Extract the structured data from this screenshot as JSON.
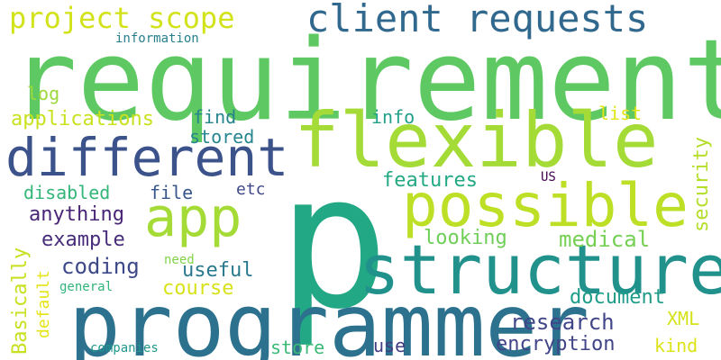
{
  "words": [
    {
      "text": "p",
      "color": "#22a884"
    },
    {
      "text": "requirement",
      "color": "#5ec962"
    },
    {
      "text": "programmer",
      "color": "#2c728e"
    },
    {
      "text": "structured",
      "color": "#21918c"
    },
    {
      "text": "flexible",
      "color": "#a5db36"
    },
    {
      "text": "possible",
      "color": "#bddf26"
    },
    {
      "text": "different",
      "color": "#3b528b"
    },
    {
      "text": "client requests",
      "color": "#31688e"
    },
    {
      "text": "app",
      "color": "#a5db36"
    },
    {
      "text": "project scope",
      "color": "#d2e21b"
    },
    {
      "text": "research",
      "color": "#404688"
    },
    {
      "text": "coding",
      "color": "#3e4989"
    },
    {
      "text": "medical",
      "color": "#75d054"
    },
    {
      "text": "looking",
      "color": "#6ece58"
    },
    {
      "text": "features",
      "color": "#23a983"
    },
    {
      "text": "document",
      "color": "#1e9c89"
    },
    {
      "text": "encryption",
      "color": "#414487"
    },
    {
      "text": "applications",
      "color": "#cae11f"
    },
    {
      "text": "anything",
      "color": "#482576"
    },
    {
      "text": "example",
      "color": "#472c7a"
    },
    {
      "text": "useful",
      "color": "#2a788e"
    },
    {
      "text": "course",
      "color": "#d8e219"
    },
    {
      "text": "disabled",
      "color": "#34b679"
    },
    {
      "text": "file",
      "color": "#39568c"
    },
    {
      "text": "store",
      "color": "#3aba76"
    },
    {
      "text": "security",
      "color": "#b5de2b"
    },
    {
      "text": "Basically",
      "color": "#c8e020"
    },
    {
      "text": "default",
      "color": "#e5e419"
    },
    {
      "text": "find",
      "color": "#25848e"
    },
    {
      "text": "stored",
      "color": "#24868e"
    },
    {
      "text": "info",
      "color": "#1fa088"
    },
    {
      "text": "list",
      "color": "#e2e418"
    },
    {
      "text": "log",
      "color": "#9dd93b"
    },
    {
      "text": "etc",
      "color": "#3f4788"
    },
    {
      "text": "XML",
      "color": "#d5e21a"
    },
    {
      "text": "kind",
      "color": "#dde318"
    },
    {
      "text": "use",
      "color": "#433d84"
    },
    {
      "text": "information",
      "color": "#277f8e"
    },
    {
      "text": "need",
      "color": "#84d44b"
    },
    {
      "text": "general",
      "color": "#31b57b"
    },
    {
      "text": "companies",
      "color": "#1f988b"
    },
    {
      "text": "US",
      "color": "#440154"
    }
  ]
}
